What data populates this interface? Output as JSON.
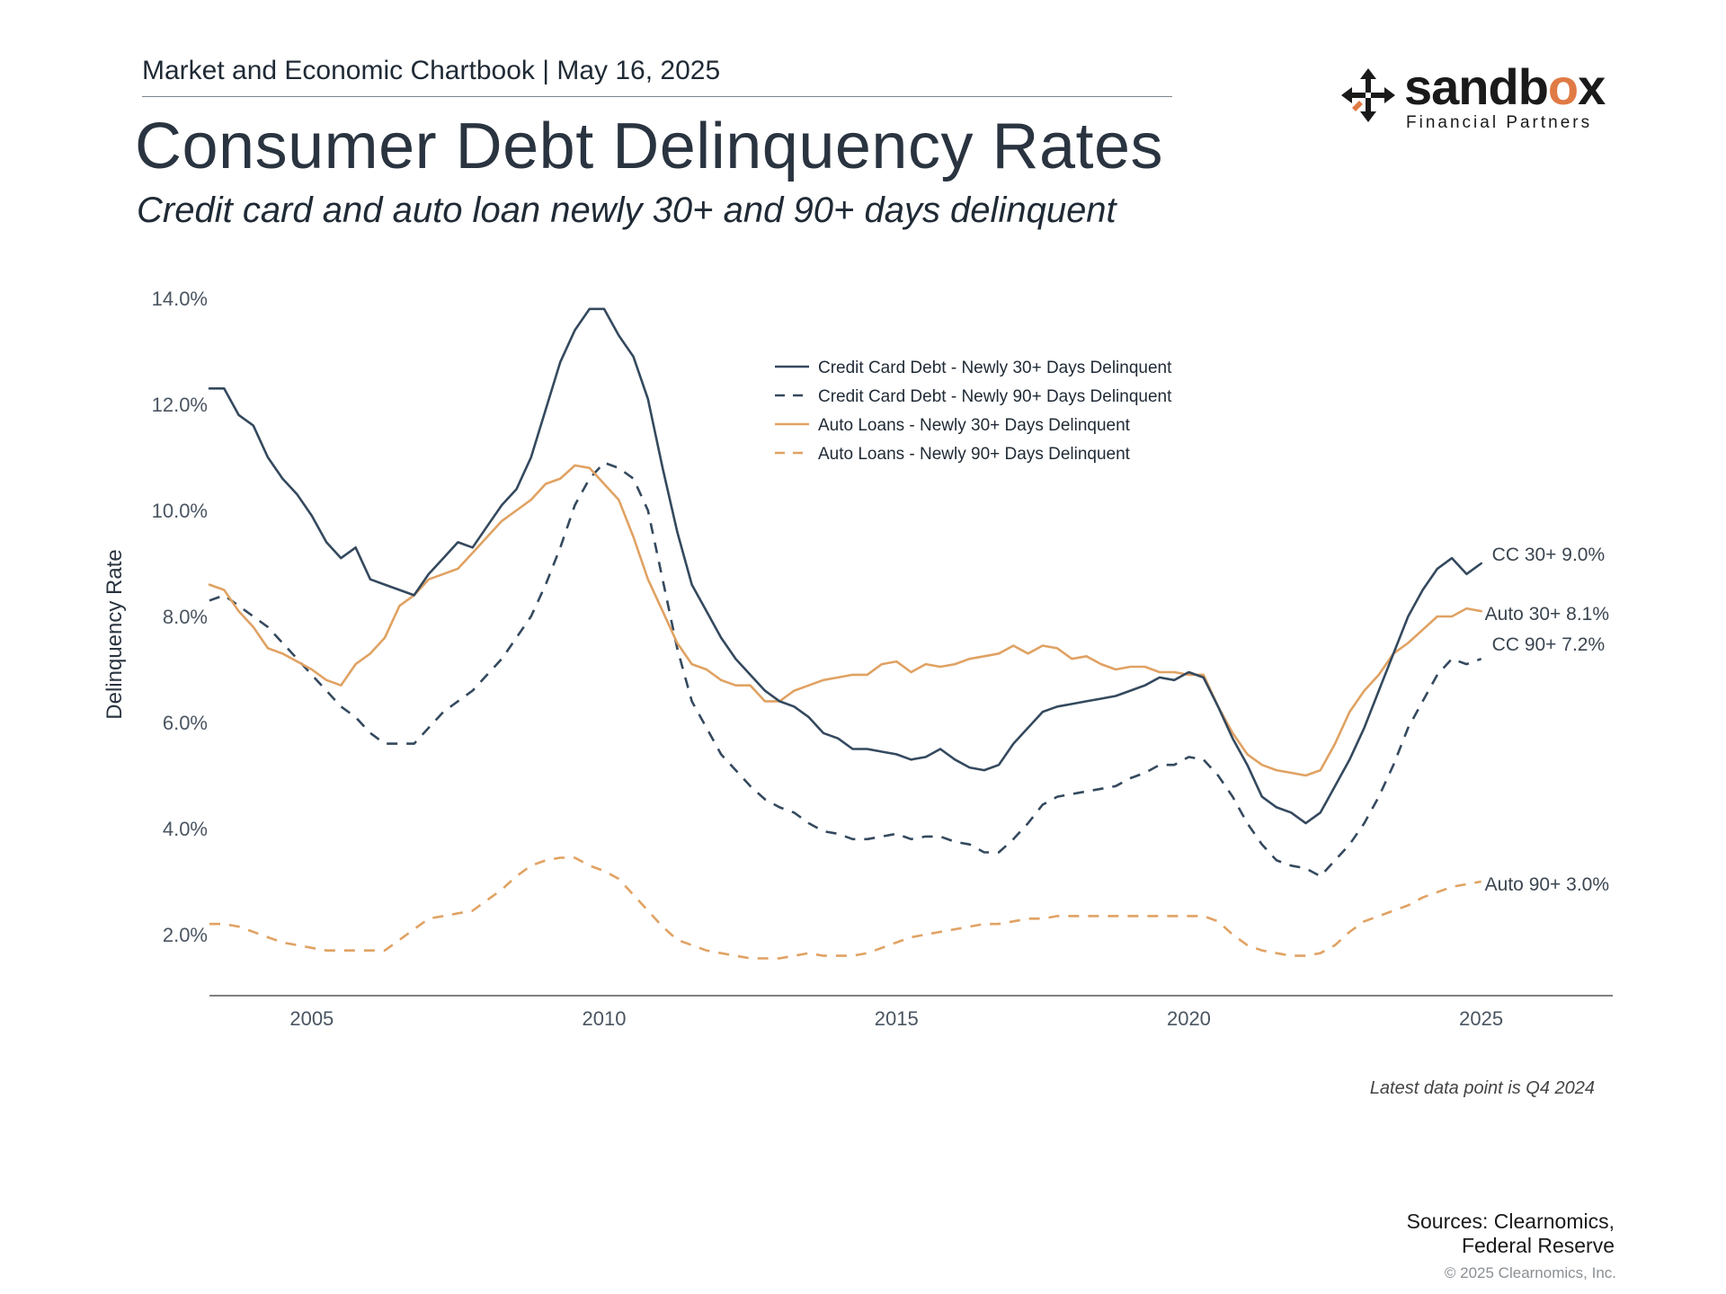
{
  "header": {
    "doc_title": "Market and Economic Chartbook | May 16, 2025",
    "title": "Consumer Debt Delinquency Rates",
    "subtitle": "Credit card and auto loan newly 30+ and 90+ days delinquent"
  },
  "logo": {
    "word_prefix": "sandb",
    "word_accent": "o",
    "word_suffix": "x",
    "tagline": "Financial Partners",
    "accent_color": "#e07a45"
  },
  "footer": {
    "note": "Latest data point is Q4 2024",
    "sources_line1": "Sources: Clearnomics,",
    "sources_line2": "Federal Reserve",
    "copyright": "© 2025 Clearnomics, Inc."
  },
  "chart_data": {
    "type": "line",
    "title": "Consumer Debt Delinquency Rates",
    "xlabel": "",
    "ylabel": "Delinquency Rate",
    "xlim": [
      2003.25,
      2027.25
    ],
    "ylim": [
      0.9,
      14.3
    ],
    "x_ticks": [
      2005,
      2010,
      2015,
      2020,
      2025
    ],
    "x_tick_labels": [
      "2005",
      "2010",
      "2015",
      "2020",
      "2025"
    ],
    "y_ticks": [
      2,
      4,
      6,
      8,
      10,
      12,
      14
    ],
    "y_tick_labels": [
      "2.0%",
      "4.0%",
      "6.0%",
      "8.0%",
      "10.0%",
      "12.0%",
      "14.0%"
    ],
    "legend_position": "top-center",
    "x": [
      2003.25,
      2003.5,
      2003.75,
      2004,
      2004.25,
      2004.5,
      2004.75,
      2005,
      2005.25,
      2005.5,
      2005.75,
      2006,
      2006.25,
      2006.5,
      2006.75,
      2007,
      2007.25,
      2007.5,
      2007.75,
      2008,
      2008.25,
      2008.5,
      2008.75,
      2009,
      2009.25,
      2009.5,
      2009.75,
      2010,
      2010.25,
      2010.5,
      2010.75,
      2011,
      2011.25,
      2011.5,
      2011.75,
      2012,
      2012.25,
      2012.5,
      2012.75,
      2013,
      2013.25,
      2013.5,
      2013.75,
      2014,
      2014.25,
      2014.5,
      2014.75,
      2015,
      2015.25,
      2015.5,
      2015.75,
      2016,
      2016.25,
      2016.5,
      2016.75,
      2017,
      2017.25,
      2017.5,
      2017.75,
      2018,
      2018.25,
      2018.5,
      2018.75,
      2019,
      2019.25,
      2019.5,
      2019.75,
      2020,
      2020.25,
      2020.5,
      2020.75,
      2021,
      2021.25,
      2021.5,
      2021.75,
      2022,
      2022.25,
      2022.5,
      2022.75,
      2023,
      2023.25,
      2023.5,
      2023.75,
      2024,
      2024.25,
      2024.5,
      2024.75,
      2025
    ],
    "series": [
      {
        "name": "Credit Card Debt - Newly 30+ Days Delinquent",
        "color": "#34495e",
        "dash": "solid",
        "end_label": "CC 30+ 9.0%",
        "values": [
          12.3,
          12.3,
          11.8,
          11.6,
          11.0,
          10.6,
          10.3,
          9.9,
          9.4,
          9.1,
          9.3,
          8.7,
          8.6,
          8.5,
          8.4,
          8.8,
          9.1,
          9.4,
          9.3,
          9.7,
          10.1,
          10.4,
          11.0,
          11.9,
          12.8,
          13.4,
          13.8,
          13.8,
          13.3,
          12.9,
          12.1,
          10.8,
          9.6,
          8.6,
          8.1,
          7.6,
          7.2,
          6.9,
          6.6,
          6.4,
          6.3,
          6.1,
          5.8,
          5.7,
          5.5,
          5.5,
          5.45,
          5.4,
          5.3,
          5.35,
          5.5,
          5.3,
          5.15,
          5.1,
          5.2,
          5.6,
          5.9,
          6.2,
          6.3,
          6.35,
          6.4,
          6.45,
          6.5,
          6.6,
          6.7,
          6.85,
          6.8,
          6.95,
          6.85,
          6.3,
          5.7,
          5.2,
          4.6,
          4.4,
          4.3,
          4.1,
          4.3,
          4.8,
          5.3,
          5.9,
          6.6,
          7.3,
          8.0,
          8.5,
          8.9,
          9.1,
          8.8,
          9.0
        ]
      },
      {
        "name": "Credit Card Debt - Newly 90+ Days Delinquent",
        "color": "#34495e",
        "dash": "dashed",
        "end_label": "CC 90+ 7.2%",
        "values": [
          8.3,
          8.4,
          8.2,
          8.0,
          7.8,
          7.5,
          7.2,
          6.9,
          6.6,
          6.3,
          6.1,
          5.8,
          5.6,
          5.6,
          5.6,
          5.9,
          6.2,
          6.4,
          6.6,
          6.9,
          7.2,
          7.6,
          8.0,
          8.6,
          9.3,
          10.1,
          10.6,
          10.9,
          10.8,
          10.6,
          10.0,
          8.7,
          7.4,
          6.4,
          5.9,
          5.4,
          5.1,
          4.8,
          4.55,
          4.4,
          4.3,
          4.1,
          3.95,
          3.9,
          3.8,
          3.8,
          3.85,
          3.9,
          3.8,
          3.85,
          3.85,
          3.75,
          3.7,
          3.55,
          3.55,
          3.8,
          4.1,
          4.45,
          4.6,
          4.65,
          4.7,
          4.75,
          4.8,
          4.95,
          5.05,
          5.2,
          5.2,
          5.35,
          5.3,
          5.0,
          4.6,
          4.1,
          3.7,
          3.4,
          3.3,
          3.25,
          3.1,
          3.4,
          3.7,
          4.1,
          4.6,
          5.2,
          5.9,
          6.4,
          6.9,
          7.2,
          7.1,
          7.2
        ]
      },
      {
        "name": "Auto Loans - Newly 30+ Days Delinquent",
        "color": "#e0a263",
        "dash": "solid",
        "end_label": "Auto 30+ 8.1%",
        "values": [
          8.6,
          8.5,
          8.1,
          7.8,
          7.4,
          7.3,
          7.15,
          7.0,
          6.8,
          6.7,
          7.1,
          7.3,
          7.6,
          8.2,
          8.4,
          8.7,
          8.8,
          8.9,
          9.2,
          9.5,
          9.8,
          10.0,
          10.2,
          10.5,
          10.6,
          10.85,
          10.8,
          10.5,
          10.2,
          9.5,
          8.7,
          8.1,
          7.5,
          7.1,
          7.0,
          6.8,
          6.7,
          6.7,
          6.4,
          6.4,
          6.6,
          6.7,
          6.8,
          6.85,
          6.9,
          6.9,
          7.1,
          7.15,
          6.95,
          7.1,
          7.05,
          7.1,
          7.2,
          7.25,
          7.3,
          7.45,
          7.3,
          7.45,
          7.4,
          7.2,
          7.25,
          7.1,
          7.0,
          7.05,
          7.05,
          6.95,
          6.95,
          6.9,
          6.9,
          6.3,
          5.8,
          5.4,
          5.2,
          5.1,
          5.05,
          5.0,
          5.1,
          5.6,
          6.2,
          6.6,
          6.9,
          7.3,
          7.5,
          7.75,
          8.0,
          8.0,
          8.15,
          8.1
        ]
      },
      {
        "name": "Auto Loans - Newly 90+ Days Delinquent",
        "color": "#e0a263",
        "dash": "dashed",
        "end_label": "Auto 90+ 3.0%",
        "values": [
          2.2,
          2.2,
          2.15,
          2.05,
          1.95,
          1.85,
          1.8,
          1.75,
          1.7,
          1.7,
          1.7,
          1.7,
          1.7,
          1.9,
          2.1,
          2.3,
          2.35,
          2.4,
          2.45,
          2.65,
          2.85,
          3.1,
          3.3,
          3.4,
          3.45,
          3.45,
          3.3,
          3.2,
          3.05,
          2.75,
          2.45,
          2.15,
          1.9,
          1.8,
          1.7,
          1.65,
          1.6,
          1.55,
          1.55,
          1.55,
          1.6,
          1.65,
          1.6,
          1.6,
          1.6,
          1.65,
          1.75,
          1.85,
          1.95,
          2.0,
          2.05,
          2.1,
          2.15,
          2.2,
          2.2,
          2.25,
          2.3,
          2.3,
          2.35,
          2.35,
          2.35,
          2.35,
          2.35,
          2.35,
          2.35,
          2.35,
          2.35,
          2.35,
          2.35,
          2.25,
          2.0,
          1.8,
          1.7,
          1.65,
          1.6,
          1.6,
          1.65,
          1.8,
          2.05,
          2.25,
          2.35,
          2.45,
          2.55,
          2.7,
          2.8,
          2.9,
          2.95,
          3.0
        ]
      }
    ]
  }
}
